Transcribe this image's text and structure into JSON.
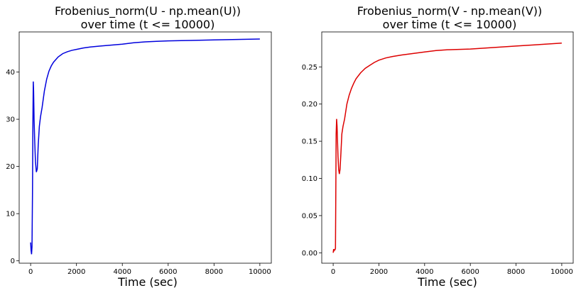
{
  "chart_data": [
    {
      "type": "line",
      "title_line1": "Frobenius_norm(U - np.mean(U))",
      "title_line2": "over time (t <= 10000)",
      "xlabel": "Time (sec)",
      "ylabel": "",
      "xlim": [
        -500,
        10500
      ],
      "ylim": [
        -0.5,
        48.5
      ],
      "xticks": [
        0,
        2000,
        4000,
        6000,
        8000,
        10000
      ],
      "yticks": [
        0,
        10,
        20,
        30,
        40
      ],
      "ytick_decimals": 0,
      "grid": false,
      "color": "#0000dd",
      "series": [
        {
          "x": [
            0,
            10,
            20,
            40,
            60,
            80,
            100,
            115,
            130,
            150,
            180,
            210,
            250,
            290,
            330,
            380,
            430,
            500,
            600,
            700,
            800,
            900,
            1000,
            1200,
            1400,
            1600,
            1800,
            2000,
            2300,
            2600,
            3000,
            3500,
            4000,
            4500,
            5000,
            5500,
            6000,
            7000,
            8000,
            9000,
            10000
          ],
          "y": [
            3.9,
            3.0,
            2.2,
            1.4,
            3.0,
            14,
            30,
            38,
            36,
            30,
            25,
            21,
            18.8,
            19.5,
            24.5,
            28.5,
            30.5,
            32.5,
            36,
            38.5,
            40.2,
            41.3,
            42.1,
            43.2,
            43.9,
            44.3,
            44.6,
            44.8,
            45.1,
            45.3,
            45.5,
            45.7,
            45.9,
            46.2,
            46.4,
            46.5,
            46.6,
            46.7,
            46.8,
            46.9,
            47.0
          ]
        }
      ]
    },
    {
      "type": "line",
      "title_line1": "Frobenius_norm(V - np.mean(V))",
      "title_line2": "over time (t <= 10000)",
      "xlabel": "Time (sec)",
      "ylabel": "",
      "xlim": [
        -500,
        10500
      ],
      "ylim": [
        -0.014,
        0.297
      ],
      "xticks": [
        0,
        2000,
        4000,
        6000,
        8000,
        10000
      ],
      "yticks": [
        0.0,
        0.05,
        0.1,
        0.15,
        0.2,
        0.25
      ],
      "ytick_decimals": 2,
      "grid": false,
      "color": "#dd0000",
      "series": [
        {
          "x": [
            0,
            20,
            40,
            60,
            80,
            100,
            115,
            130,
            150,
            170,
            190,
            210,
            240,
            270,
            300,
            340,
            380,
            430,
            500,
            600,
            700,
            800,
            900,
            1000,
            1200,
            1400,
            1600,
            1800,
            2000,
            2300,
            2600,
            3000,
            3500,
            4000,
            4500,
            5000,
            6000,
            7000,
            8000,
            9000,
            10000
          ],
          "y": [
            0.0,
            0.005,
            0.003,
            0.004,
            0.004,
            0.006,
            0.08,
            0.16,
            0.18,
            0.17,
            0.15,
            0.13,
            0.112,
            0.106,
            0.112,
            0.135,
            0.16,
            0.17,
            0.18,
            0.2,
            0.212,
            0.221,
            0.228,
            0.234,
            0.242,
            0.248,
            0.252,
            0.256,
            0.259,
            0.262,
            0.264,
            0.266,
            0.268,
            0.27,
            0.272,
            0.273,
            0.274,
            0.276,
            0.278,
            0.28,
            0.282
          ]
        }
      ]
    }
  ]
}
